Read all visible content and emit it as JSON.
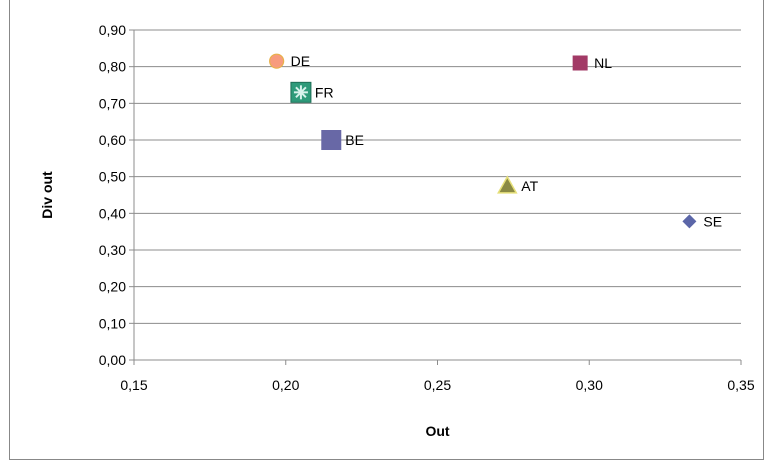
{
  "chart_data": {
    "type": "scatter",
    "title": "",
    "xlabel": "Out",
    "ylabel": "Div out",
    "xlim": [
      0.15,
      0.35
    ],
    "ylim": [
      0.0,
      0.9
    ],
    "x_ticks": [
      0.15,
      0.2,
      0.25,
      0.3,
      0.35
    ],
    "y_ticks": [
      0.0,
      0.1,
      0.2,
      0.3,
      0.4,
      0.5,
      0.6,
      0.7,
      0.8,
      0.9
    ],
    "x_tick_labels": [
      "0,15",
      "0,20",
      "0,25",
      "0,30",
      "0,35"
    ],
    "y_tick_labels": [
      "0,00",
      "0,10",
      "0,20",
      "0,30",
      "0,40",
      "0,50",
      "0,60",
      "0,70",
      "0,80",
      "0,90"
    ],
    "grid": "horizontal",
    "points": [
      {
        "label": "DE",
        "x": 0.197,
        "y": 0.815,
        "marker": "circle",
        "color": "#F79B7E"
      },
      {
        "label": "NL",
        "x": 0.297,
        "y": 0.81,
        "marker": "square",
        "color": "#A23A66"
      },
      {
        "label": "FR",
        "x": 0.205,
        "y": 0.73,
        "marker": "star-box",
        "color": "#2E9A7A"
      },
      {
        "label": "BE",
        "x": 0.215,
        "y": 0.6,
        "marker": "square",
        "color": "#6868A6"
      },
      {
        "label": "AT",
        "x": 0.273,
        "y": 0.475,
        "marker": "triangle",
        "color": "#8A8A44"
      },
      {
        "label": "SE",
        "x": 0.333,
        "y": 0.378,
        "marker": "diamond",
        "color": "#5B66A8"
      }
    ]
  }
}
